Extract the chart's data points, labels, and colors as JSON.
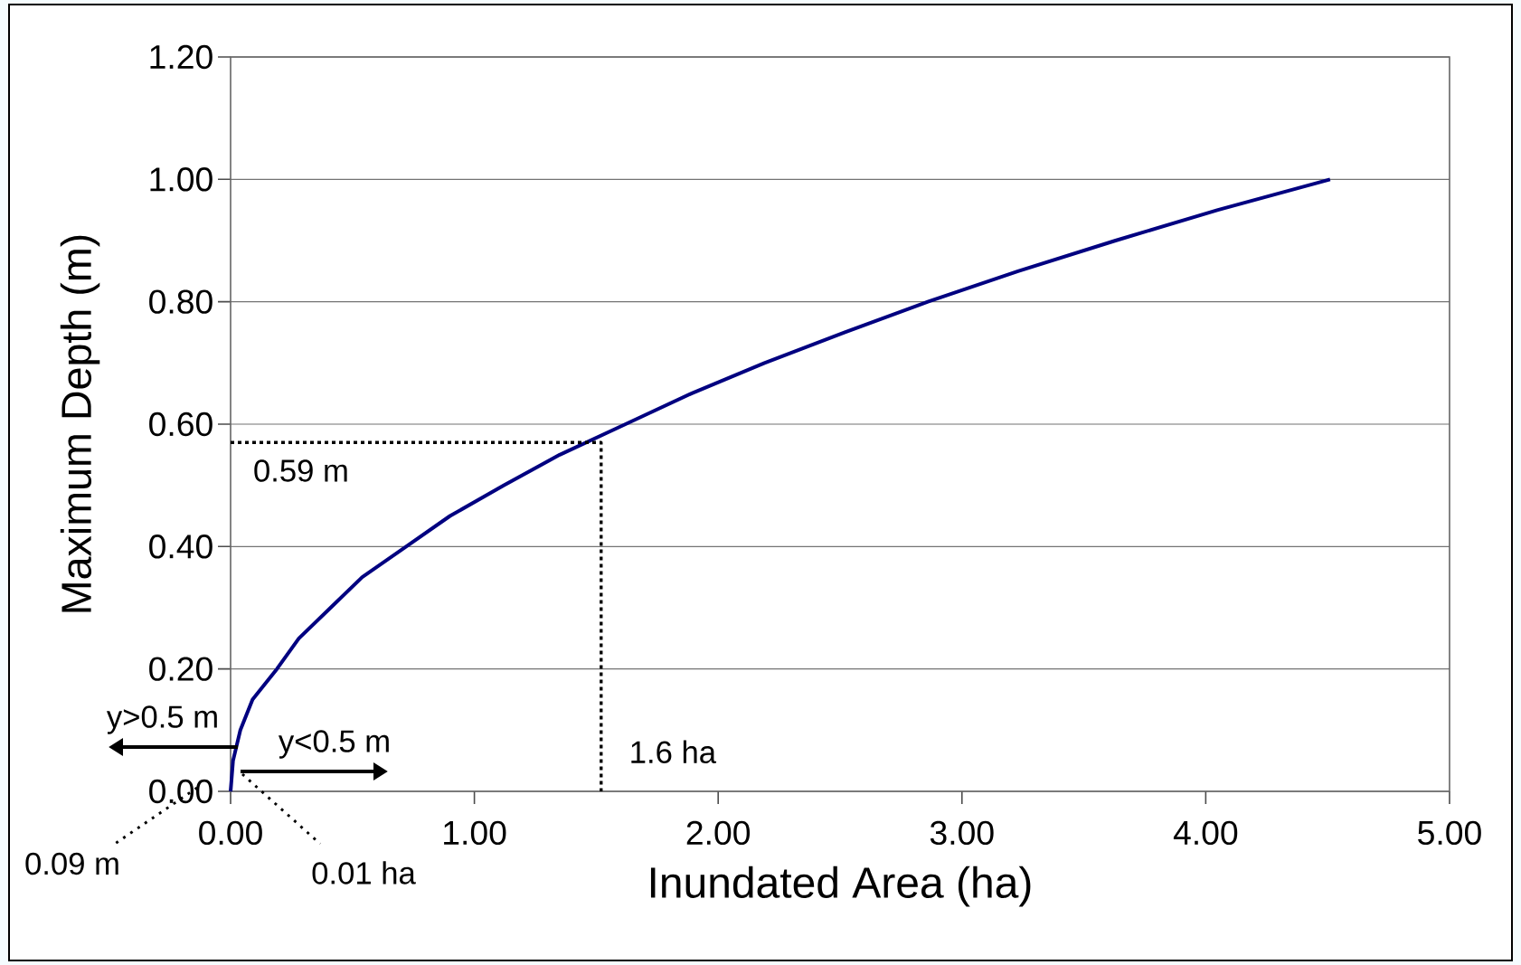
{
  "chart_data": {
    "type": "line",
    "xlabel": "Inundated Area (ha)",
    "ylabel": "Maximum Depth (m)",
    "xlim": [
      0,
      5
    ],
    "ylim": [
      0,
      1.2
    ],
    "xticks": [
      {
        "value": 0,
        "label": "0.00"
      },
      {
        "value": 1,
        "label": "1.00"
      },
      {
        "value": 2,
        "label": "2.00"
      },
      {
        "value": 3,
        "label": "3.00"
      },
      {
        "value": 4,
        "label": "4.00"
      },
      {
        "value": 5,
        "label": "5.00"
      }
    ],
    "yticks": [
      {
        "value": 0,
        "label": "0.00"
      },
      {
        "value": 0.2,
        "label": "0.20"
      },
      {
        "value": 0.4,
        "label": "0.40"
      },
      {
        "value": 0.6,
        "label": "0.60"
      },
      {
        "value": 0.8,
        "label": "0.80"
      },
      {
        "value": 1.0,
        "label": "1.00"
      },
      {
        "value": 1.2,
        "label": "1.20"
      }
    ],
    "grid": "y",
    "series": [
      {
        "color": "#000080",
        "line_style": "solid",
        "x": [
          0,
          0.01,
          0.04,
          0.09,
          0.19,
          0.28,
          0.41,
          0.54,
          0.72,
          0.9,
          1.12,
          1.35,
          1.62,
          1.89,
          2.19,
          2.52,
          2.86,
          3.23,
          3.63,
          4.05,
          4.51
        ],
        "values": [
          0,
          0.05,
          0.1,
          0.15,
          0.2,
          0.25,
          0.3,
          0.35,
          0.4,
          0.45,
          0.5,
          0.55,
          0.6,
          0.65,
          0.7,
          0.75,
          0.8,
          0.85,
          0.9,
          0.95,
          1.0
        ]
      },
      {
        "color": "#000000",
        "line_style": "dotted",
        "x": [
          0,
          1.52,
          1.52
        ],
        "values": [
          0.57,
          0.57,
          0
        ]
      }
    ],
    "annotations": [
      {
        "text": "0.59 m",
        "x": 0,
        "y": 0.57
      },
      {
        "text": "1.6 ha",
        "x": 1.52,
        "y": 0
      },
      "y>0.5 m",
      "y<0.5 m",
      "0.09 m",
      "0.01 ha"
    ]
  }
}
